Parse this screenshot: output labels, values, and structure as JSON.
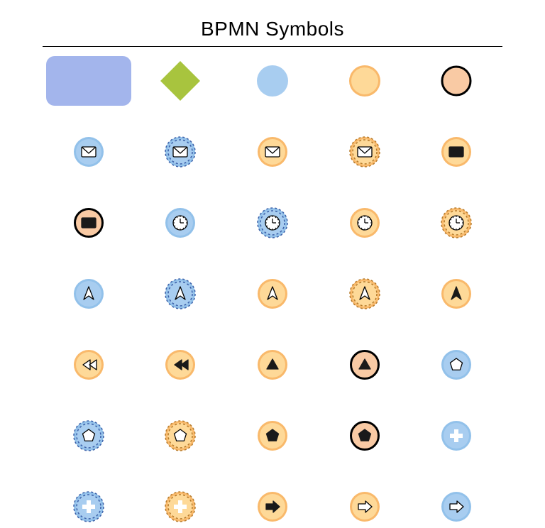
{
  "title": "BPMN Symbols",
  "title_fontsize": 28,
  "background_color": "#ffffff",
  "hr_color": "#000000",
  "palette": {
    "blue_fill": "#a3b5ec",
    "blue_light": "#a8cdf0",
    "blue_medium": "#92c1ea",
    "green": "#a8c43e",
    "orange_light": "#fed998",
    "orange_medium": "#fdca6d",
    "peach": "#f9caa4",
    "orange_border": "#f9b96b",
    "blue_border": "#6f9edb",
    "black": "#000000",
    "dark": "#1a1a1a",
    "white": "#ffffff"
  },
  "grid": {
    "rows": 7,
    "cols": 5,
    "row_gap": 40,
    "cells": [
      {
        "r": 0,
        "c": 0,
        "type": "rounded-rect",
        "fill": "#a3b5ec",
        "w": 120,
        "h": 70,
        "rx": 12
      },
      {
        "r": 0,
        "c": 1,
        "type": "diamond",
        "fill": "#a8c43e",
        "size": 56
      },
      {
        "r": 0,
        "c": 2,
        "type": "circle",
        "fill": "#a8cdf0",
        "size": 44
      },
      {
        "r": 0,
        "c": 3,
        "type": "double-circle",
        "fill": "#fed998",
        "ring": "#f9b96b",
        "size": 44
      },
      {
        "r": 0,
        "c": 4,
        "type": "circle",
        "fill": "#f9caa4",
        "stroke": "#000000",
        "sw": 3,
        "size": 40
      },
      {
        "r": 1,
        "c": 0,
        "type": "event",
        "bg": "blue-solid",
        "icon": "envelope",
        "icon_fill": "#ffffff",
        "icon_stroke": "#000000"
      },
      {
        "r": 1,
        "c": 1,
        "type": "event",
        "bg": "blue-dashed",
        "icon": "envelope",
        "icon_fill": "#ffffff",
        "icon_stroke": "#000000"
      },
      {
        "r": 1,
        "c": 2,
        "type": "event",
        "bg": "orange-solid",
        "icon": "envelope",
        "icon_fill": "#ffffff",
        "icon_stroke": "#000000"
      },
      {
        "r": 1,
        "c": 3,
        "type": "event",
        "bg": "orange-dashed",
        "icon": "envelope",
        "icon_fill": "#ffffff",
        "icon_stroke": "#000000"
      },
      {
        "r": 1,
        "c": 4,
        "type": "event",
        "bg": "orange-solid",
        "icon": "envelope",
        "icon_fill": "#1a1a1a",
        "icon_stroke": "#1a1a1a"
      },
      {
        "r": 2,
        "c": 0,
        "type": "event",
        "bg": "peach-thick",
        "icon": "envelope",
        "icon_fill": "#1a1a1a",
        "icon_stroke": "#1a1a1a"
      },
      {
        "r": 2,
        "c": 1,
        "type": "event",
        "bg": "blue-solid",
        "icon": "clock",
        "icon_fill": "none",
        "icon_stroke": "#000000"
      },
      {
        "r": 2,
        "c": 2,
        "type": "event",
        "bg": "blue-dashed",
        "icon": "clock",
        "icon_fill": "none",
        "icon_stroke": "#000000"
      },
      {
        "r": 2,
        "c": 3,
        "type": "event",
        "bg": "orange-solid",
        "icon": "clock",
        "icon_fill": "none",
        "icon_stroke": "#000000"
      },
      {
        "r": 2,
        "c": 4,
        "type": "event",
        "bg": "orange-dashed",
        "icon": "clock",
        "icon_fill": "none",
        "icon_stroke": "#000000"
      },
      {
        "r": 3,
        "c": 0,
        "type": "event",
        "bg": "blue-solid",
        "icon": "arrowhead",
        "icon_fill": "#ffffff",
        "icon_stroke": "#000000"
      },
      {
        "r": 3,
        "c": 1,
        "type": "event",
        "bg": "blue-dashed",
        "icon": "arrowhead",
        "icon_fill": "#ffffff",
        "icon_stroke": "#000000"
      },
      {
        "r": 3,
        "c": 2,
        "type": "event",
        "bg": "orange-solid",
        "icon": "arrowhead",
        "icon_fill": "#ffffff",
        "icon_stroke": "#000000"
      },
      {
        "r": 3,
        "c": 3,
        "type": "event",
        "bg": "orange-dashed",
        "icon": "arrowhead",
        "icon_fill": "#ffffff",
        "icon_stroke": "#000000"
      },
      {
        "r": 3,
        "c": 4,
        "type": "event",
        "bg": "orange-solid",
        "icon": "arrowhead",
        "icon_fill": "#1a1a1a",
        "icon_stroke": "#1a1a1a"
      },
      {
        "r": 4,
        "c": 0,
        "type": "event",
        "bg": "orange-solid",
        "icon": "rewind",
        "icon_fill": "#ffffff",
        "icon_stroke": "#000000"
      },
      {
        "r": 4,
        "c": 1,
        "type": "event",
        "bg": "orange-solid",
        "icon": "rewind",
        "icon_fill": "#1a1a1a",
        "icon_stroke": "#1a1a1a"
      },
      {
        "r": 4,
        "c": 2,
        "type": "event",
        "bg": "orange-solid",
        "icon": "triangle-up",
        "icon_fill": "#1a1a1a",
        "icon_stroke": "#1a1a1a"
      },
      {
        "r": 4,
        "c": 3,
        "type": "event",
        "bg": "peach-thick",
        "icon": "triangle-up",
        "icon_fill": "#1a1a1a",
        "icon_stroke": "#1a1a1a"
      },
      {
        "r": 4,
        "c": 4,
        "type": "event",
        "bg": "blue-solid",
        "icon": "pentagon",
        "icon_fill": "#ffffff",
        "icon_stroke": "#000000"
      },
      {
        "r": 5,
        "c": 0,
        "type": "event",
        "bg": "blue-dashed",
        "icon": "pentagon",
        "icon_fill": "#ffffff",
        "icon_stroke": "#000000"
      },
      {
        "r": 5,
        "c": 1,
        "type": "event",
        "bg": "orange-dashed",
        "icon": "pentagon",
        "icon_fill": "#ffffff",
        "icon_stroke": "#000000"
      },
      {
        "r": 5,
        "c": 2,
        "type": "event",
        "bg": "orange-solid",
        "icon": "pentagon",
        "icon_fill": "#1a1a1a",
        "icon_stroke": "#1a1a1a"
      },
      {
        "r": 5,
        "c": 3,
        "type": "event",
        "bg": "peach-thick",
        "icon": "pentagon",
        "icon_fill": "#1a1a1a",
        "icon_stroke": "#1a1a1a"
      },
      {
        "r": 5,
        "c": 4,
        "type": "event",
        "bg": "blue-solid",
        "icon": "plus",
        "icon_fill": "#ffffff",
        "icon_stroke": "#ffffff"
      },
      {
        "r": 6,
        "c": 0,
        "type": "event",
        "bg": "blue-dashed",
        "icon": "plus",
        "icon_fill": "#ffffff",
        "icon_stroke": "#ffffff"
      },
      {
        "r": 6,
        "c": 1,
        "type": "event",
        "bg": "orange-dashed",
        "icon": "plus",
        "icon_fill": "#ffffff",
        "icon_stroke": "#ffffff"
      },
      {
        "r": 6,
        "c": 2,
        "type": "event",
        "bg": "orange-solid",
        "icon": "arrow-right",
        "icon_fill": "#1a1a1a",
        "icon_stroke": "#1a1a1a"
      },
      {
        "r": 6,
        "c": 3,
        "type": "event",
        "bg": "orange-solid",
        "icon": "arrow-right",
        "icon_fill": "#ffffff",
        "icon_stroke": "#000000"
      },
      {
        "r": 6,
        "c": 4,
        "type": "event",
        "bg": "blue-solid",
        "icon": "arrow-right",
        "icon_fill": "#ffffff",
        "icon_stroke": "#000000"
      }
    ]
  },
  "event_circle": {
    "diameter": 42,
    "styles": {
      "blue-solid": {
        "fill": "#a8cdf0",
        "ring": "#92c1ea",
        "ring_dash": "none",
        "outer_stroke": "none"
      },
      "blue-dashed": {
        "fill": "#a8cdf0",
        "ring": "#92c1ea",
        "ring_dash": "none",
        "outer_stroke": "#3a5fa8",
        "dash": "3,3"
      },
      "orange-solid": {
        "fill": "#fed998",
        "ring": "#f9b96b",
        "ring_dash": "none",
        "outer_stroke": "none"
      },
      "orange-dashed": {
        "fill": "#fed998",
        "ring": "#f9b96b",
        "ring_dash": "none",
        "outer_stroke": "#b57a2a",
        "dash": "3,3"
      },
      "peach-thick": {
        "fill": "#f9caa4",
        "ring": "none",
        "ring_dash": "none",
        "outer_stroke": "#000000",
        "thick": true
      }
    }
  }
}
